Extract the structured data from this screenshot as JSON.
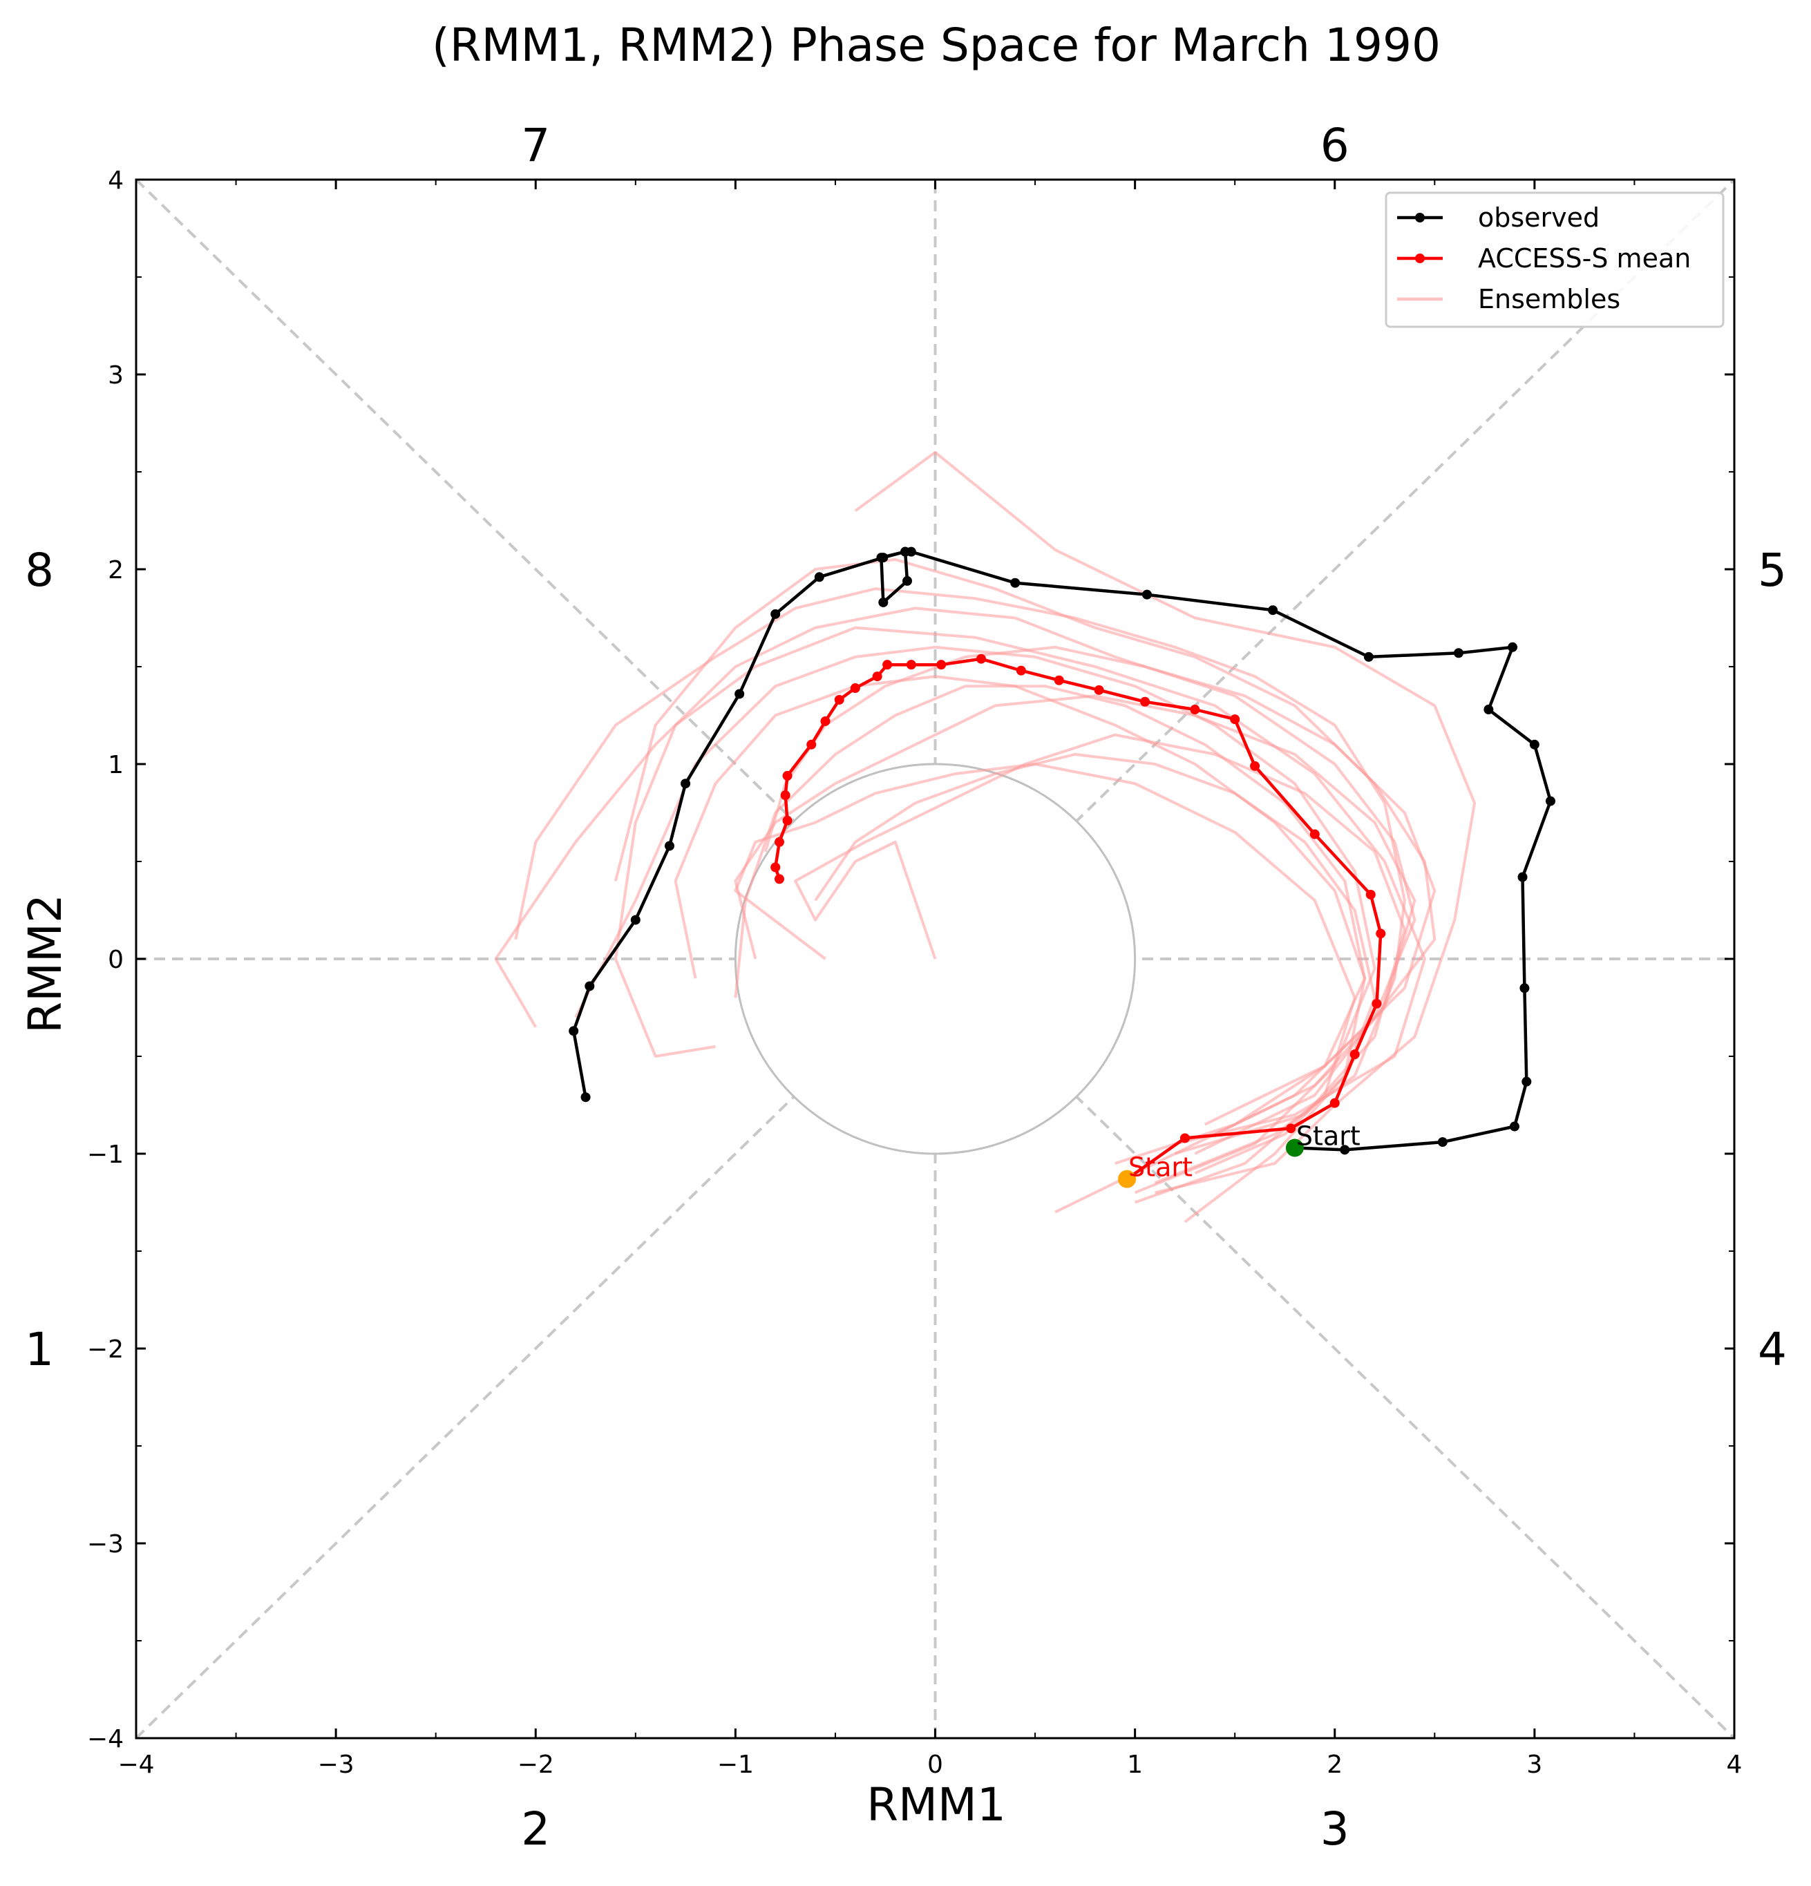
{
  "chart_data": {
    "type": "line",
    "title": "(RMM1, RMM2) Phase Space for March 1990",
    "xlabel": "RMM1",
    "ylabel": "RMM2",
    "xlim": [
      -4,
      4
    ],
    "ylim": [
      -4,
      4
    ],
    "xticks": [
      -4,
      -3,
      -2,
      -1,
      0,
      1,
      2,
      3,
      4
    ],
    "yticks": [
      -4,
      -3,
      -2,
      -1,
      0,
      1,
      2,
      3,
      4
    ],
    "xtick_labels": [
      "−4",
      "−3",
      "−2",
      "−1",
      "0",
      "1",
      "2",
      "3",
      "4"
    ],
    "ytick_labels": [
      "−4",
      "−3",
      "−2",
      "−1",
      "0",
      "1",
      "2",
      "3",
      "4"
    ],
    "phase_labels": {
      "top": [
        "7",
        "6"
      ],
      "bottom": [
        "2",
        "3"
      ],
      "left": [
        "8",
        "1"
      ],
      "right": [
        "5",
        "4"
      ]
    },
    "grid": false,
    "unit_circle_radius": 1,
    "legend_position": "top-right",
    "legend": [
      "observed",
      "ACCESS-S mean",
      "Ensembles"
    ],
    "colors": {
      "observed": "#000000",
      "mean": "#ff0000",
      "ensembles": "#ff9999",
      "guides": "#c8c8c8",
      "circle": "#c0c0c0",
      "observed_start": "#008000",
      "mean_start": "#ffa500"
    },
    "annotations": [
      {
        "text": "Start",
        "x": 1.8,
        "y": -0.97,
        "color": "#000000"
      },
      {
        "text": "Start",
        "x": 0.96,
        "y": -1.13,
        "color": "#ff0000"
      }
    ],
    "series": [
      {
        "name": "observed",
        "style": "line+markers",
        "x": [
          1.8,
          2.05,
          2.54,
          2.9,
          2.96,
          2.95,
          2.94,
          3.08,
          3.0,
          2.77,
          2.89,
          2.62,
          2.17,
          1.69,
          1.06,
          0.4,
          -0.12,
          -0.15,
          -0.27,
          -0.26,
          -0.14,
          -0.15,
          -0.26,
          -0.58,
          -0.8,
          -0.98,
          -1.25,
          -1.33,
          -1.5,
          -1.73,
          -1.81,
          -1.75
        ],
        "y": [
          -0.97,
          -0.98,
          -0.94,
          -0.86,
          -0.63,
          -0.15,
          0.42,
          0.81,
          1.1,
          1.28,
          1.6,
          1.57,
          1.55,
          1.79,
          1.87,
          1.93,
          2.09,
          2.09,
          2.06,
          1.83,
          1.94,
          2.09,
          2.06,
          1.96,
          1.77,
          1.36,
          0.9,
          0.58,
          0.2,
          -0.14,
          -0.37,
          -0.71
        ]
      },
      {
        "name": "ACCESS-S mean",
        "style": "line+markers",
        "x": [
          0.96,
          1.25,
          1.78,
          2.0,
          2.1,
          2.21,
          2.23,
          2.18,
          1.9,
          1.6,
          1.5,
          1.3,
          1.05,
          0.82,
          0.62,
          0.43,
          0.23,
          0.03,
          -0.12,
          -0.24,
          -0.29,
          -0.4,
          -0.48,
          -0.55,
          -0.62,
          -0.74,
          -0.75,
          -0.74,
          -0.78,
          -0.8,
          -0.78
        ],
        "y": [
          -1.13,
          -0.92,
          -0.87,
          -0.74,
          -0.49,
          -0.23,
          0.13,
          0.33,
          0.64,
          0.99,
          1.23,
          1.28,
          1.32,
          1.38,
          1.43,
          1.48,
          1.54,
          1.51,
          1.51,
          1.51,
          1.45,
          1.39,
          1.33,
          1.22,
          1.1,
          0.94,
          0.84,
          0.71,
          0.6,
          0.47,
          0.41
        ]
      }
    ],
    "ensembles": [
      {
        "x": [
          1.1,
          1.7,
          2.1,
          2.3,
          2.35,
          2.25,
          2.0,
          1.6,
          1.2,
          0.7,
          0.2,
          -0.3,
          -0.7,
          -1.1,
          -1.6,
          -2.0,
          -2.1
        ],
        "y": [
          -1.15,
          -0.9,
          -0.6,
          -0.1,
          0.3,
          0.8,
          1.2,
          1.45,
          1.6,
          1.75,
          1.85,
          1.9,
          1.8,
          1.55,
          1.2,
          0.6,
          0.1
        ]
      },
      {
        "x": [
          1.3,
          1.9,
          2.2,
          2.4,
          2.3,
          2.0,
          1.5,
          0.9,
          0.4,
          -0.1,
          -0.6,
          -1.0,
          -1.4,
          -1.8,
          -2.2,
          -2.0
        ],
        "y": [
          -1.0,
          -0.7,
          -0.3,
          0.2,
          0.6,
          1.0,
          1.35,
          1.55,
          1.75,
          1.8,
          1.7,
          1.5,
          1.1,
          0.6,
          0.0,
          -0.35
        ]
      },
      {
        "x": [
          0.6,
          1.2,
          1.8,
          2.2,
          2.5,
          2.45,
          2.2,
          1.8,
          1.3,
          0.8,
          0.3,
          -0.2,
          -0.6,
          -1.0,
          -1.4,
          -1.6
        ],
        "y": [
          -1.3,
          -1.0,
          -0.7,
          -0.3,
          0.1,
          0.5,
          0.9,
          1.3,
          1.55,
          1.7,
          1.9,
          2.05,
          2.0,
          1.7,
          1.2,
          0.4
        ]
      },
      {
        "x": [
          1.0,
          1.6,
          2.0,
          2.2,
          2.1,
          1.8,
          1.4,
          1.0,
          0.5,
          0.0,
          -0.4,
          -0.8,
          -1.2,
          -1.5,
          -1.8
        ],
        "y": [
          -1.2,
          -0.95,
          -0.55,
          -0.05,
          0.45,
          0.9,
          1.2,
          1.4,
          1.55,
          1.6,
          1.55,
          1.4,
          1.0,
          0.3,
          -0.3
        ]
      },
      {
        "x": [
          1.2,
          1.8,
          2.3,
          2.45,
          2.25,
          1.9,
          1.4,
          0.8,
          0.2,
          -0.4,
          -0.9,
          -1.3,
          -1.5,
          -1.6,
          -1.4,
          -1.1
        ],
        "y": [
          -0.95,
          -0.8,
          -0.5,
          0.0,
          0.5,
          0.95,
          1.3,
          1.5,
          1.65,
          1.7,
          1.5,
          1.2,
          0.7,
          0.0,
          -0.5,
          -0.45
        ]
      },
      {
        "x": [
          1.25,
          1.7,
          2.05,
          2.15,
          2.0,
          1.7,
          1.3,
          0.9,
          0.4,
          0.0,
          -0.4,
          -0.8,
          -1.1,
          -1.3,
          -1.2
        ],
        "y": [
          -1.35,
          -1.0,
          -0.6,
          -0.1,
          0.35,
          0.7,
          1.0,
          1.2,
          1.4,
          1.45,
          1.4,
          1.25,
          0.9,
          0.4,
          -0.1
        ]
      },
      {
        "x": [
          0.9,
          1.5,
          1.95,
          2.15,
          2.05,
          1.75,
          1.35,
          0.95,
          0.55,
          0.15,
          -0.2,
          -0.5,
          -0.8,
          -0.95,
          -1.0
        ],
        "y": [
          -1.05,
          -0.85,
          -0.55,
          -0.1,
          0.4,
          0.8,
          1.1,
          1.3,
          1.4,
          1.4,
          1.25,
          1.05,
          0.75,
          0.3,
          -0.2
        ]
      },
      {
        "x": [
          1.4,
          1.9,
          2.25,
          2.4,
          2.2,
          1.8,
          1.3,
          0.8,
          0.3,
          -0.1,
          -0.5,
          -0.8,
          -1.0,
          -0.9
        ],
        "y": [
          -0.9,
          -0.65,
          -0.25,
          0.3,
          0.7,
          1.05,
          1.25,
          1.35,
          1.3,
          1.1,
          0.9,
          0.7,
          0.4,
          0.0
        ]
      },
      {
        "x": [
          1.0,
          1.55,
          1.95,
          2.1,
          1.9,
          1.5,
          1.0,
          0.5,
          0.1,
          -0.3,
          -0.6,
          -0.9,
          -1.0,
          -0.55
        ],
        "y": [
          -1.25,
          -1.05,
          -0.7,
          -0.2,
          0.3,
          0.65,
          0.9,
          1.0,
          0.95,
          0.85,
          0.7,
          0.6,
          0.35,
          0.0
        ]
      },
      {
        "x": [
          1.2,
          1.85,
          2.2,
          2.35,
          2.2,
          1.85,
          1.4,
          0.9,
          0.45,
          0.05,
          -0.35,
          -0.7,
          -0.6,
          -0.4,
          -0.2,
          0.0
        ],
        "y": [
          -1.0,
          -0.8,
          -0.4,
          0.15,
          0.55,
          0.85,
          1.05,
          1.15,
          1.0,
          0.8,
          0.6,
          0.4,
          0.2,
          0.5,
          0.6,
          0.0
        ]
      },
      {
        "x": [
          1.3,
          1.75,
          2.05,
          2.2,
          2.1,
          1.85,
          1.5,
          1.1,
          0.7,
          0.3,
          -0.1,
          -0.4,
          -0.6
        ],
        "y": [
          -1.1,
          -0.9,
          -0.6,
          -0.2,
          0.25,
          0.6,
          0.85,
          1.0,
          1.05,
          0.95,
          0.8,
          0.6,
          0.3
        ]
      },
      {
        "x": [
          1.35,
          1.95,
          2.35,
          2.5,
          2.35,
          2.0,
          1.55,
          1.05,
          0.6,
          0.15,
          -0.25,
          -0.55,
          -0.75,
          -0.85
        ],
        "y": [
          -0.85,
          -0.55,
          -0.15,
          0.35,
          0.75,
          1.1,
          1.35,
          1.5,
          1.6,
          1.55,
          1.4,
          1.2,
          0.9,
          0.55
        ]
      },
      {
        "x": [
          1.1,
          1.7,
          2.0,
          2.4,
          2.6,
          2.7,
          2.5,
          2.0,
          1.3,
          0.6,
          0.0,
          -0.4
        ],
        "y": [
          -1.2,
          -1.05,
          -0.75,
          -0.4,
          0.2,
          0.8,
          1.3,
          1.6,
          1.75,
          2.1,
          2.6,
          2.3
        ]
      }
    ]
  }
}
